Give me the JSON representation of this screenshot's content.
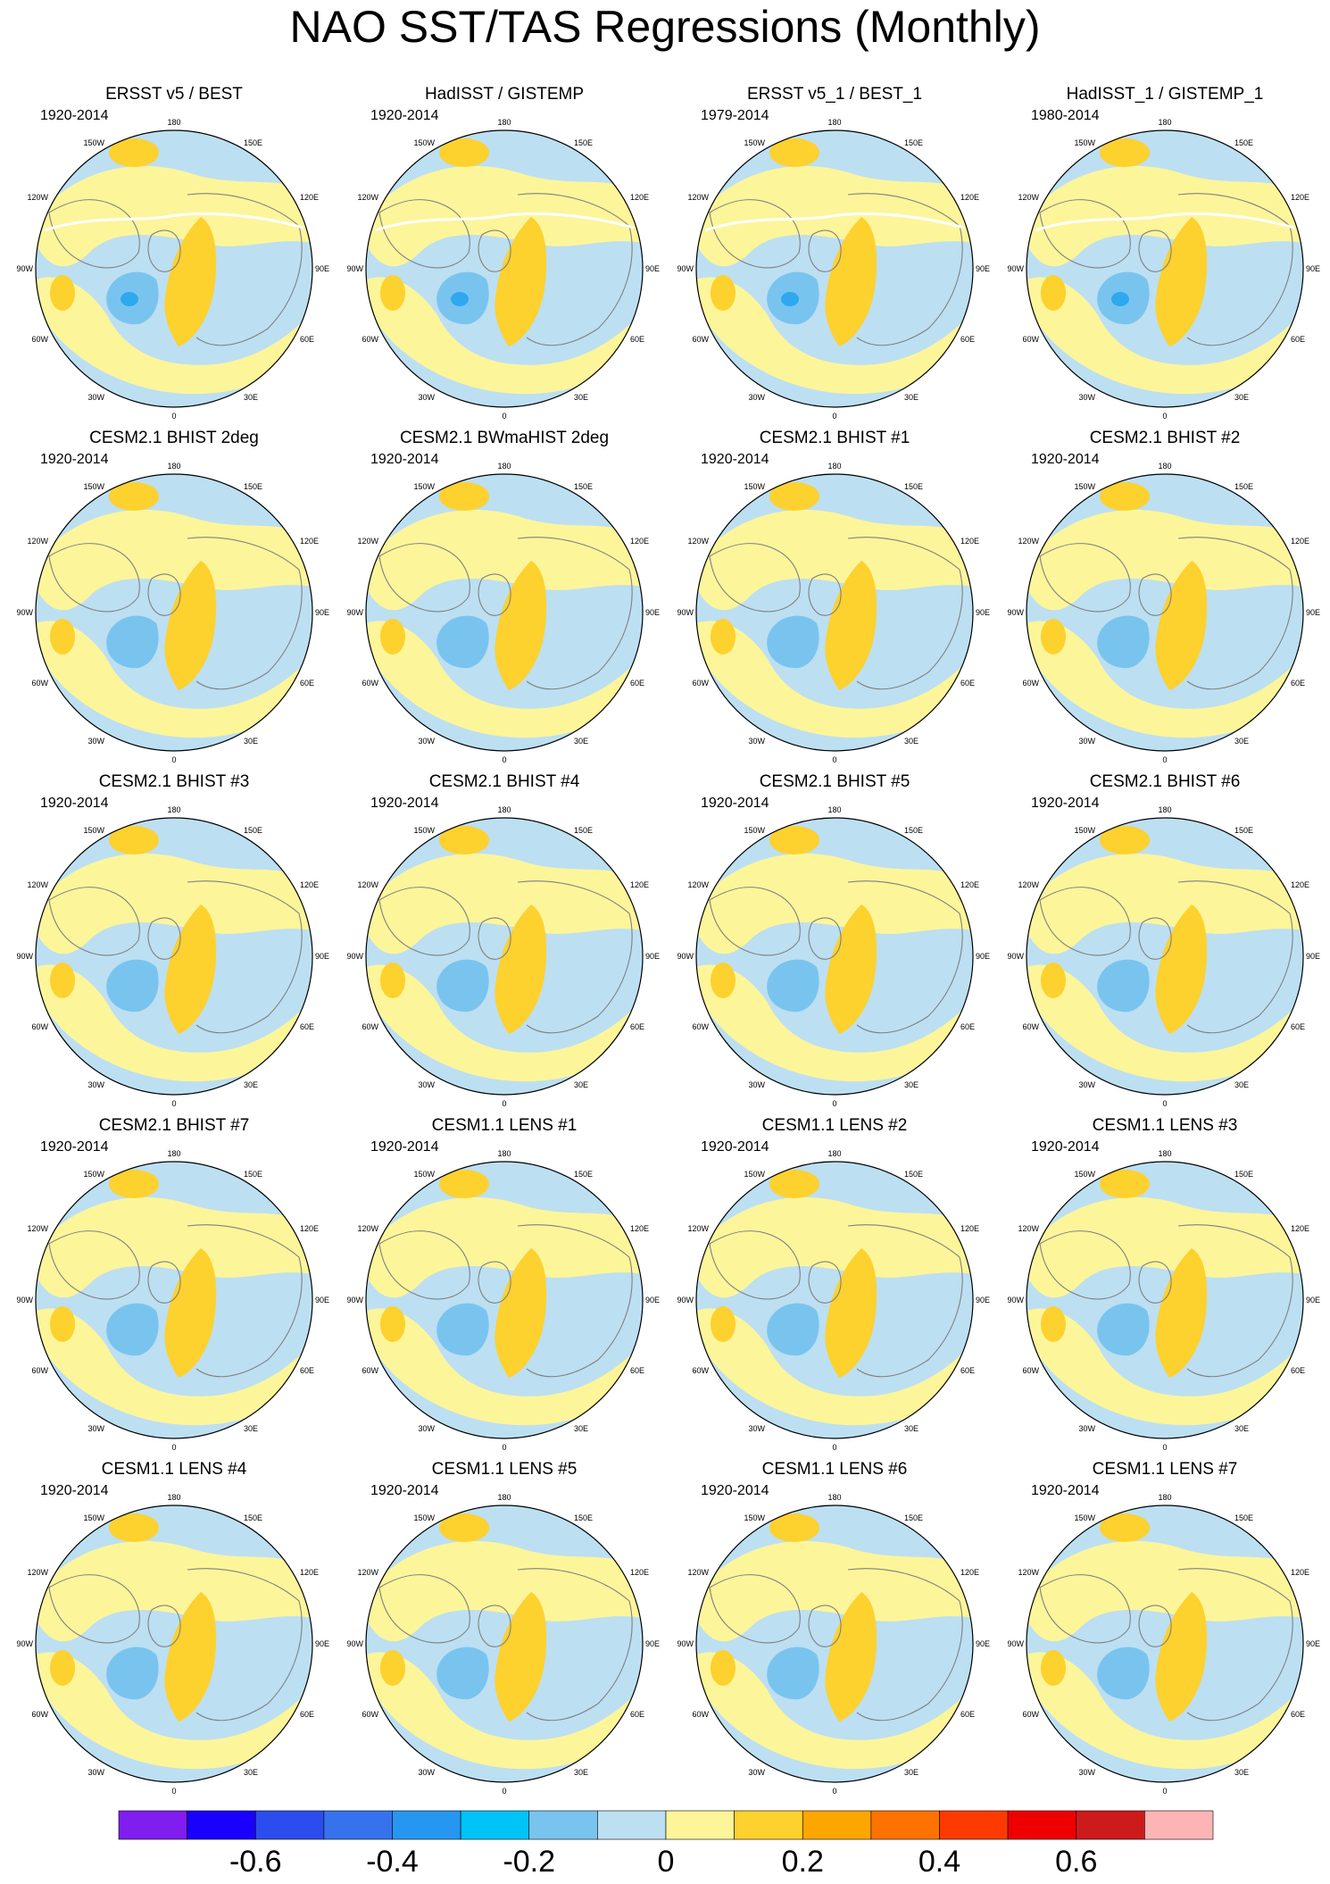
{
  "title": "NAO SST/TAS Regressions (Monthly)",
  "palette": {
    "ocean_neutral_neg": "#bcdff2",
    "land_neutral_pos": "#fdf59a",
    "weak_pos": "#fdd12e",
    "neg_weak": "#79c4ee",
    "neg_mid": "#2ea8ee",
    "coast": "#808080",
    "sea_ice": "#ffffff"
  },
  "map_labels": {
    "top": "180",
    "bottom": "0",
    "left": "90W",
    "right": "90E",
    "upper_left": "150W",
    "upper_right": "150E",
    "left_upper": "120W",
    "right_upper": "120E",
    "left_lower": "60W",
    "right_lower": "60E",
    "lower_left": "30W",
    "lower_right": "30E"
  },
  "panels": [
    {
      "title": "ERSST v5 / BEST",
      "years": "1920-2014",
      "pattern": "obs"
    },
    {
      "title": "HadISST / GISTEMP",
      "years": "1920-2014",
      "pattern": "obs"
    },
    {
      "title": "ERSST v5_1 / BEST_1",
      "years": "1979-2014",
      "pattern": "obs"
    },
    {
      "title": "HadISST_1 / GISTEMP_1",
      "years": "1980-2014",
      "pattern": "obs"
    },
    {
      "title": "CESM2.1 BHIST 2deg",
      "years": "1920-2014",
      "pattern": "model"
    },
    {
      "title": "CESM2.1 BWmaHIST 2deg",
      "years": "1920-2014",
      "pattern": "model"
    },
    {
      "title": "CESM2.1 BHIST #1",
      "years": "1920-2014",
      "pattern": "model"
    },
    {
      "title": "CESM2.1 BHIST #2",
      "years": "1920-2014",
      "pattern": "model"
    },
    {
      "title": "CESM2.1 BHIST #3",
      "years": "1920-2014",
      "pattern": "model"
    },
    {
      "title": "CESM2.1 BHIST #4",
      "years": "1920-2014",
      "pattern": "model"
    },
    {
      "title": "CESM2.1 BHIST #5",
      "years": "1920-2014",
      "pattern": "model"
    },
    {
      "title": "CESM2.1 BHIST #6",
      "years": "1920-2014",
      "pattern": "model"
    },
    {
      "title": "CESM2.1 BHIST #7",
      "years": "1920-2014",
      "pattern": "model"
    },
    {
      "title": "CESM1.1 LENS #1",
      "years": "1920-2014",
      "pattern": "model"
    },
    {
      "title": "CESM1.1 LENS #2",
      "years": "1920-2014",
      "pattern": "model"
    },
    {
      "title": "CESM1.1 LENS #3",
      "years": "1920-2014",
      "pattern": "model"
    },
    {
      "title": "CESM1.1 LENS #4",
      "years": "1920-2014",
      "pattern": "model"
    },
    {
      "title": "CESM1.1 LENS #5",
      "years": "1920-2014",
      "pattern": "model"
    },
    {
      "title": "CESM1.1 LENS #6",
      "years": "1920-2014",
      "pattern": "model"
    },
    {
      "title": "CESM1.1 LENS #7",
      "years": "1920-2014",
      "pattern": "model"
    }
  ],
  "colorbar": {
    "colors": [
      "#7f1eef",
      "#1a00ff",
      "#2b4dee",
      "#3672ec",
      "#2597f0",
      "#00c3f8",
      "#79c4ee",
      "#bcdff2",
      "#fdf59a",
      "#fdd12e",
      "#fda600",
      "#fd7200",
      "#fd3a00",
      "#ef0000",
      "#cd1a1a",
      "#fdb4b4"
    ],
    "tick_labels": [
      "-0.6",
      "-0.4",
      "-0.2",
      "0",
      "0.2",
      "0.4",
      "0.6"
    ],
    "tick_boundary_index": [
      2,
      4,
      6,
      8,
      10,
      12,
      14
    ]
  }
}
